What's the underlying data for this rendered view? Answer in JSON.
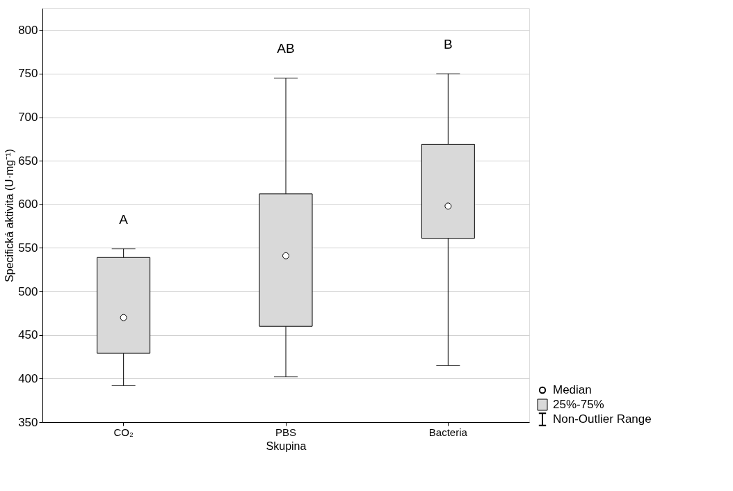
{
  "chart_data": {
    "type": "box",
    "xlabel": "Skupina",
    "ylabel": "Specifická aktivita (U·mg⁻¹)",
    "categories": [
      "CO₂",
      "PBS",
      "Bacteria"
    ],
    "boxes": [
      {
        "low": 392,
        "q1": 429,
        "median": 470,
        "q3": 539,
        "high": 549
      },
      {
        "low": 402,
        "q1": 460,
        "median": 541,
        "q3": 612,
        "high": 745
      },
      {
        "low": 415,
        "q1": 561,
        "median": 598,
        "q3": 669,
        "high": 750
      }
    ],
    "color": "#d9d9d9",
    "ylim": [
      350,
      825
    ],
    "yticks": [
      350,
      400,
      450,
      500,
      550,
      600,
      650,
      700,
      750,
      800
    ],
    "grid": "y",
    "marker": "circle",
    "annotations": [
      "A",
      "AB",
      "B",
      "Median",
      "25%-75%",
      "Non-Outlier Range"
    ]
  }
}
